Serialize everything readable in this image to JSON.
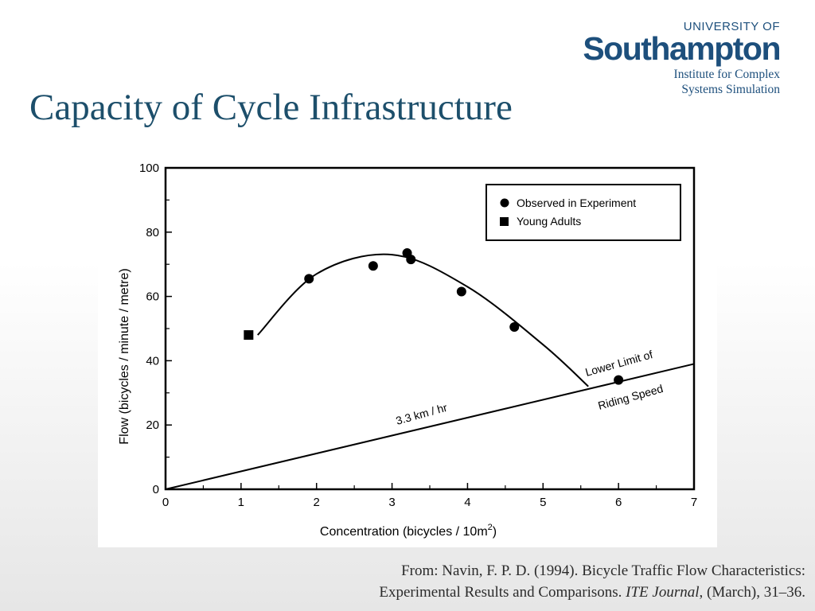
{
  "logo": {
    "line1": "UNIVERSITY OF",
    "line2": "Southampton"
  },
  "institute": {
    "line1": "Institute for Complex",
    "line2": "Systems Simulation"
  },
  "slide_title": "Capacity of Cycle Infrastructure",
  "chart_data": {
    "type": "scatter",
    "xlabel": "Concentration (bicycles / 10m",
    "xlabel_sup": "2",
    "xlabel_close": ")",
    "ylabel": "Flow (bicycles / minute / metre)",
    "xlim": [
      0,
      7
    ],
    "ylim": [
      0,
      100
    ],
    "xticks": [
      "0",
      "1",
      "2",
      "3",
      "4",
      "5",
      "6",
      "7"
    ],
    "yticks": [
      "0",
      "20",
      "40",
      "60",
      "80",
      "100"
    ],
    "legend": {
      "placement": "top-right",
      "observed": "Observed in Experiment",
      "young": "Young Adults"
    },
    "series": [
      {
        "name": "Observed in Experiment",
        "marker": "circle",
        "x": [
          1.9,
          2.75,
          3.2,
          3.25,
          3.92,
          4.62,
          6.0
        ],
        "y": [
          65.5,
          69.5,
          73.5,
          71.5,
          61.5,
          50.5,
          34
        ]
      },
      {
        "name": "Young Adults",
        "marker": "square",
        "x": [
          1.1
        ],
        "y": [
          48
        ]
      }
    ],
    "fitted_curve": {
      "x": [
        1.22,
        2.0,
        3.0,
        4.0,
        5.0,
        5.6
      ],
      "y": [
        48,
        67,
        73,
        63,
        45,
        32
      ]
    },
    "speed_line": {
      "x": [
        0,
        7
      ],
      "y": [
        0,
        39
      ],
      "label": "3.3 km / hr"
    },
    "annotation": {
      "line1": "Lower Limit of",
      "line2": "Riding Speed"
    }
  },
  "citation": {
    "line1": "From: Navin, F. P. D. (1994). Bicycle Traffic Flow Characteristics:",
    "line2_a": "Experimental Results and Comparisons. ",
    "line2_journal": "ITE Journal",
    "line2_b": ", (March), 31–36."
  }
}
